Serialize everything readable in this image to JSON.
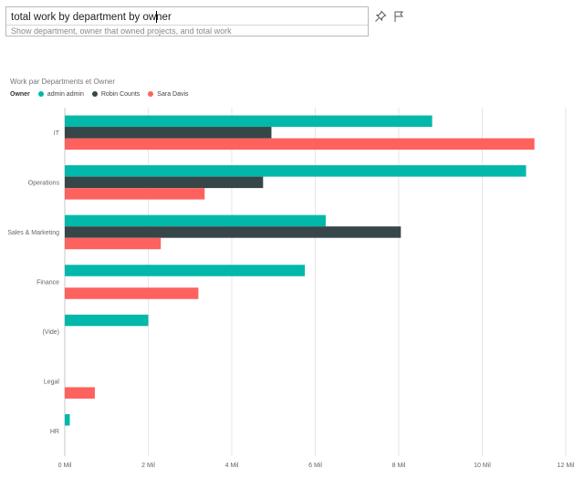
{
  "qa": {
    "question": "total work by department by owner",
    "suggestion": "Show department, owner that owned projects, and total work"
  },
  "icons": {
    "pin": "pin-icon",
    "flag": "flag-icon"
  },
  "colors": {
    "admin_admin": "#01B8AA",
    "robin_counts": "#374649",
    "sara_davis": "#FD625E",
    "gridline": "#e6e6e6"
  },
  "chart_data": {
    "type": "bar",
    "orientation": "horizontal",
    "title": "Work par Departments et Owner",
    "legend_title": "Owner",
    "legend_position": "top-left",
    "categories": [
      "IT",
      "Operations",
      "Sales & Marketing",
      "Finance",
      "(Vide)",
      "Legal",
      "HR"
    ],
    "series": [
      {
        "name": "admin admin",
        "color": "#01B8AA",
        "values": [
          8.8,
          11.05,
          6.25,
          5.75,
          2.0,
          null,
          0.12
        ]
      },
      {
        "name": "Robin Counts",
        "color": "#374649",
        "values": [
          4.95,
          4.75,
          8.05,
          null,
          null,
          null,
          null
        ]
      },
      {
        "name": "Sara Davis",
        "color": "#FD625E",
        "values": [
          11.25,
          3.35,
          2.3,
          3.2,
          null,
          0.72,
          null
        ]
      }
    ],
    "xlim": [
      0,
      12
    ],
    "xticks": [
      0,
      2,
      4,
      6,
      8,
      10,
      12
    ],
    "xtick_labels": [
      "0 Mil",
      "2 Mil",
      "4 Mil",
      "6 Mil",
      "8 Mil",
      "10 Mil",
      "12 Mil"
    ],
    "grid": true
  }
}
